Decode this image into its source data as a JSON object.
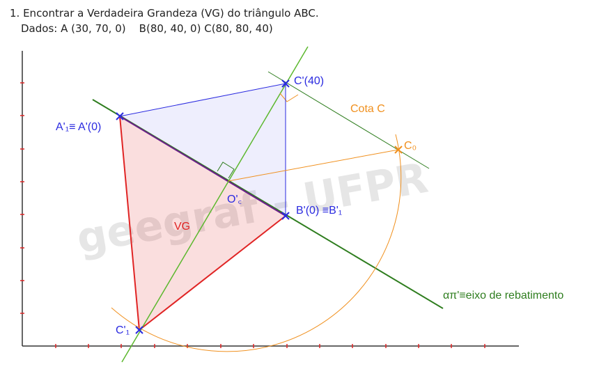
{
  "header": {
    "line1": "1. Encontrar a Verdadeira Grandeza (VG) do triângulo ABC.",
    "line2": "Dados: A (30, 70, 0)    B(80, 40, 0) C(80, 80, 40)"
  },
  "watermark": "geegraf - UFPR",
  "labels": {
    "a1": "A'₁≡ A'(0)",
    "c": "C'(40)",
    "cota": "Cota C",
    "c0": "C₀",
    "oc": "O'꜀",
    "b": "B'(0) ≡B'₁",
    "vg": "VG",
    "c1": "C'₁",
    "eixo": "απ'≡eixo de rebatimento"
  },
  "colors": {
    "blue": "#2a2ae0",
    "red": "#e02424",
    "orange": "#f0901e",
    "green": "#2e7d1e",
    "lime": "#5cb82e",
    "purple": "#6a1f8a",
    "axis": "#333333"
  }
}
